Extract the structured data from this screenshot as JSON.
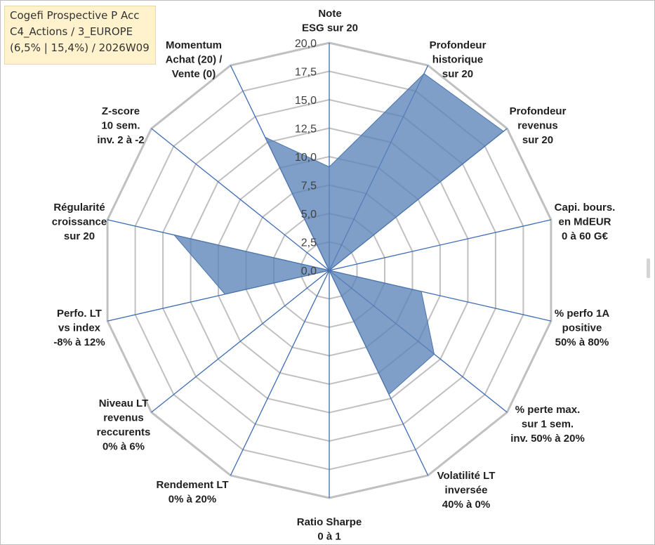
{
  "title_box": {
    "line1": "Cogefi Prospective P Acc",
    "line2": "C4_Actions / 3_EUROPE",
    "line3": "(6,5% | 15,4%) / 2026W09"
  },
  "colors": {
    "fill": "#5b84b8",
    "fill_opacity": 0.78,
    "spoke": "#3d6bb3",
    "grid": "#c0c0c0",
    "title_bg": "#fff2cc"
  },
  "chart_data": {
    "type": "radar",
    "rmin": 0,
    "rmax": 20,
    "grid": true,
    "ticks": [
      "0,0",
      "2,5",
      "5,0",
      "7,5",
      "10,0",
      "12,5",
      "15,0",
      "17,5",
      "20,0"
    ],
    "tick_values": [
      0,
      2.5,
      5,
      7.5,
      10,
      12.5,
      15,
      17.5,
      20
    ],
    "axes": [
      {
        "label": [
          "Note",
          "ESG sur 20"
        ],
        "value": 9.1
      },
      {
        "label": [
          "Profondeur",
          "historique",
          "sur 20"
        ],
        "value": 19.2
      },
      {
        "label": [
          "Profondeur",
          "revenus",
          "sur 20"
        ],
        "value": 19.6
      },
      {
        "label": [
          "Capi. bours.",
          "en MdEUR",
          "0 à 60 G€"
        ],
        "value": 0
      },
      {
        "label": [
          "% perfo 1A",
          "positive",
          "50% à 80%"
        ],
        "value": 8.3
      },
      {
        "label": [
          "% perte max.",
          "sur 1 sem.",
          "inv. 50% à 20%"
        ],
        "value": 11.8
      },
      {
        "label": [
          "Volatilité LT",
          "inversée",
          "40% à 0%"
        ],
        "value": 12.1
      },
      {
        "label": [
          "Ratio Sharpe",
          "0 à 1"
        ],
        "value": 0
      },
      {
        "label": [
          "Rendement LT",
          "0% à 20%"
        ],
        "value": 1.6
      },
      {
        "label": [
          "Niveau LT",
          "revenus",
          "reccurents",
          "0% à 6%"
        ],
        "value": 0
      },
      {
        "label": [
          "Perfo. LT",
          "vs index",
          "-8% à 12%"
        ],
        "value": 9.4
      },
      {
        "label": [
          "Régularité",
          "croissance",
          "sur 20"
        ],
        "value": 14.0
      },
      {
        "label": [
          "Z-score",
          "10 sem.",
          "inv. 2 à -2"
        ],
        "value": 0
      },
      {
        "label": [
          "Momentum",
          "Achat (20) /",
          "Vente (0)"
        ],
        "value": 13.0
      }
    ]
  }
}
